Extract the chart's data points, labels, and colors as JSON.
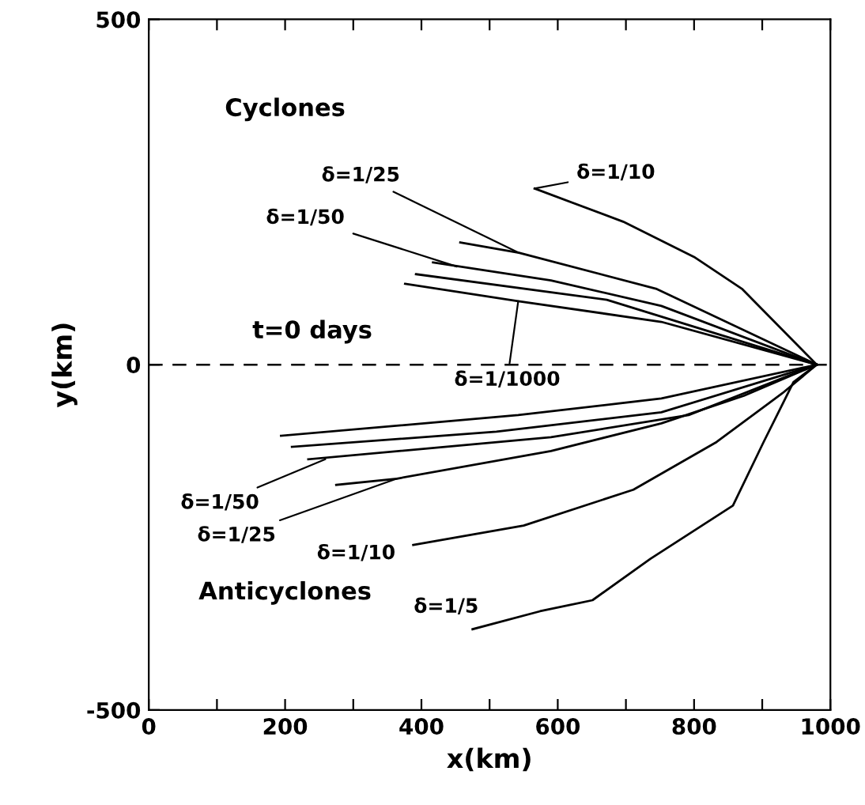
{
  "chart_data": {
    "type": "line",
    "xlabel": "x(km)",
    "ylabel": "y(km)",
    "xlim": [
      0,
      1000
    ],
    "ylim": [
      -500,
      500
    ],
    "xticks": [
      0,
      {
        "value": 100,
        "label": null
      },
      200,
      {
        "value": 300,
        "label": null
      },
      400,
      {
        "value": 500,
        "label": null
      },
      600,
      {
        "value": 700,
        "label": null
      },
      800,
      {
        "value": 900,
        "label": null
      },
      1000
    ],
    "yticks": [
      -500,
      0,
      500
    ],
    "marker": "none",
    "line_style": "solid",
    "ref_lines": [
      {
        "axis": "y",
        "value": 0,
        "label": "t=0 days",
        "line_style": "dashed",
        "color": "#000000"
      }
    ],
    "series": [
      {
        "color": "#000000",
        "x": [
          566,
          696,
          800,
          870,
          980
        ],
        "values": [
          255,
          207,
          156,
          110,
          0
        ]
      },
      {
        "color": "#000000",
        "x": [
          457,
          543,
          744,
          980
        ],
        "values": [
          177,
          162,
          110,
          0
        ]
      },
      {
        "color": "#000000",
        "x": [
          417,
          590,
          752,
          980
        ],
        "values": [
          148,
          122,
          85,
          0
        ]
      },
      {
        "color": "#000000",
        "x": [
          392,
          672,
          980
        ],
        "values": [
          131,
          94,
          0
        ]
      },
      {
        "color": "#000000",
        "x": [
          376,
          542,
          752,
          980
        ],
        "values": [
          117,
          92,
          62,
          0
        ]
      },
      {
        "color": "#000000",
        "x": [
          194,
          542,
          752,
          980
        ],
        "values": [
          -103,
          -73,
          -49,
          0
        ]
      },
      {
        "color": "#000000",
        "x": [
          210,
          510,
          752,
          980
        ],
        "values": [
          -119,
          -97,
          -69,
          0
        ]
      },
      {
        "color": "#000000",
        "x": [
          234,
          590,
          792,
          980
        ],
        "values": [
          -137,
          -105,
          -73,
          0
        ]
      },
      {
        "color": "#000000",
        "x": [
          275,
          364,
          590,
          752,
          873,
          980
        ],
        "values": [
          -174,
          -165,
          -125,
          -85,
          -45,
          0
        ]
      },
      {
        "color": "#000000",
        "x": [
          388,
          550,
          711,
          833,
          930,
          980
        ],
        "values": [
          -261,
          -233,
          -181,
          -112,
          -41,
          0
        ]
      },
      {
        "color": "#000000",
        "x": [
          475,
          574,
          651,
          736,
          857,
          902,
          946,
          980
        ],
        "values": [
          -383,
          -357,
          -341,
          -281,
          -204,
          -112,
          -25,
          0
        ]
      }
    ],
    "annotations": [
      "Cyclones",
      "Anticyclones",
      {
        "text": "δ=1/10",
        "x": 566,
        "y": 255
      },
      {
        "text": "δ=1/25",
        "x": 543,
        "y": 162
      },
      {
        "text": "δ=1/50",
        "x": 452,
        "y": 142
      },
      {
        "text": "δ=1/1000",
        "x": 542,
        "y": 92
      },
      {
        "text": "δ=1/50",
        "x": 259,
        "y": -137
      },
      {
        "text": "δ=1/25",
        "x": 364,
        "y": -165
      },
      {
        "text": "δ=1/10",
        "x": 388,
        "y": -261
      },
      {
        "text": "δ=1/5",
        "x": 475,
        "y": -383
      }
    ]
  }
}
